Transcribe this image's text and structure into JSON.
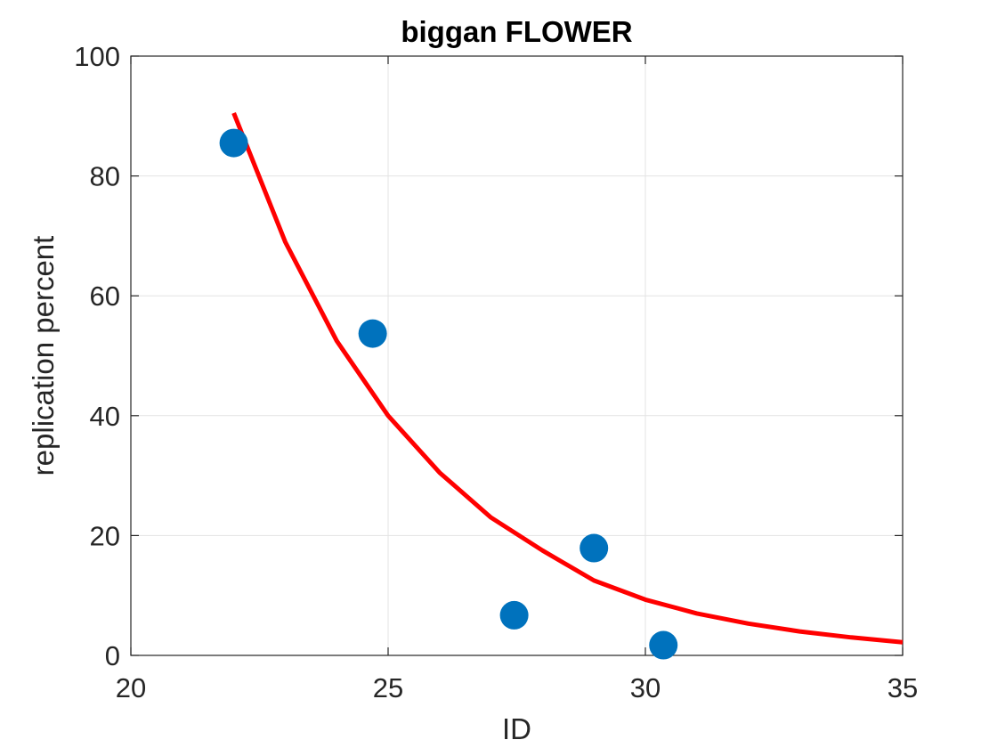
{
  "chart_data": {
    "type": "scatter",
    "title": "biggan FLOWER",
    "xlabel": "ID",
    "ylabel": "replication percent",
    "xlim": [
      20,
      35
    ],
    "ylim": [
      0,
      100
    ],
    "xticks": [
      20,
      25,
      30,
      35
    ],
    "yticks": [
      0,
      20,
      40,
      60,
      80,
      100
    ],
    "xtick_labels": [
      "20",
      "25",
      "30",
      "35"
    ],
    "ytick_labels": [
      "0",
      "20",
      "40",
      "60",
      "80",
      "100"
    ],
    "grid": true,
    "series": [
      {
        "type": "scatter",
        "color": "#0072BD",
        "points": [
          {
            "x": 22.0,
            "y": 85.5
          },
          {
            "x": 24.7,
            "y": 53.7
          },
          {
            "x": 27.45,
            "y": 6.7
          },
          {
            "x": 29.0,
            "y": 17.9
          },
          {
            "x": 30.35,
            "y": 1.7
          }
        ]
      },
      {
        "type": "line",
        "color": "#FF0000",
        "points": [
          {
            "x": 22.0,
            "y": 90.5
          },
          {
            "x": 23.0,
            "y": 69.0
          },
          {
            "x": 24.0,
            "y": 52.5
          },
          {
            "x": 25.0,
            "y": 40.0
          },
          {
            "x": 26.0,
            "y": 30.5
          },
          {
            "x": 27.0,
            "y": 23.0
          },
          {
            "x": 28.0,
            "y": 17.5
          },
          {
            "x": 29.0,
            "y": 12.5
          },
          {
            "x": 30.0,
            "y": 9.3
          },
          {
            "x": 31.0,
            "y": 7.0
          },
          {
            "x": 32.0,
            "y": 5.3
          },
          {
            "x": 33.0,
            "y": 4.0
          },
          {
            "x": 34.0,
            "y": 3.0
          },
          {
            "x": 35.0,
            "y": 2.2
          }
        ]
      }
    ]
  }
}
